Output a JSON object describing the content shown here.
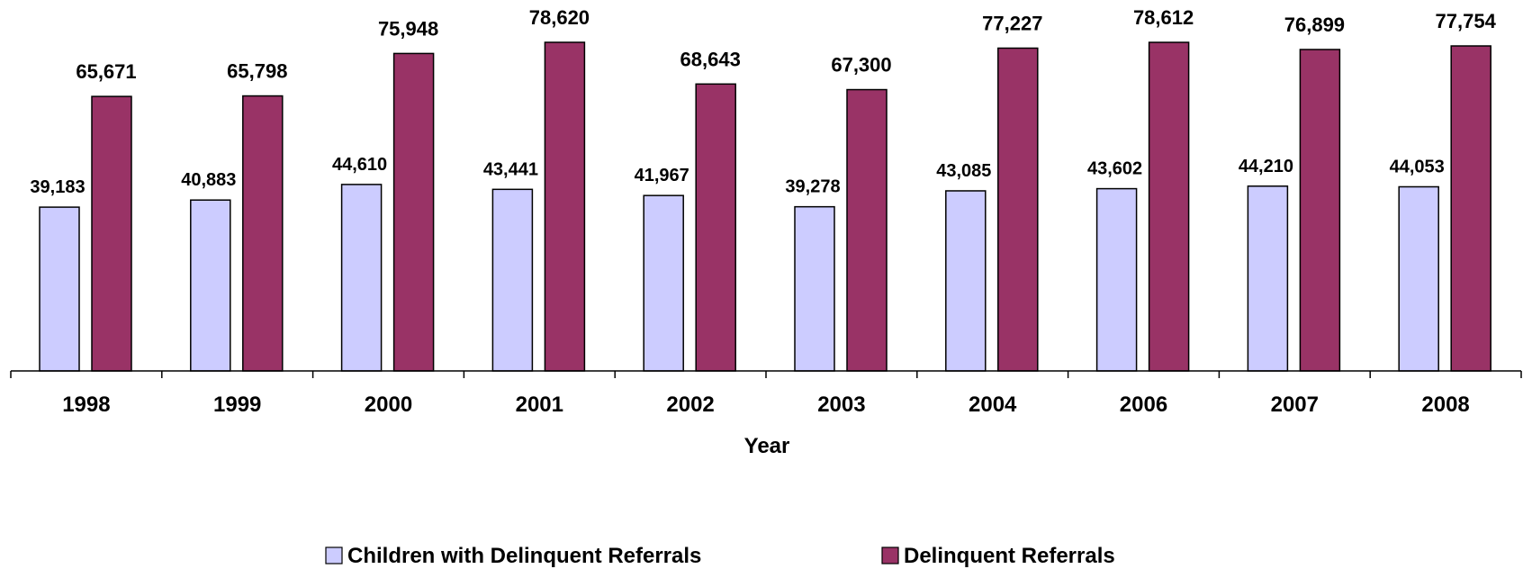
{
  "chart_data": {
    "type": "bar",
    "categories": [
      "1998",
      "1999",
      "2000",
      "2001",
      "2002",
      "2003",
      "2004",
      "2006",
      "2007",
      "2008"
    ],
    "series": [
      {
        "name": "Children with Delinquent Referrals",
        "color": "#ccccff",
        "values": [
          39183,
          40883,
          44610,
          43441,
          41967,
          39278,
          43085,
          43602,
          44210,
          44053
        ],
        "labels": [
          "39,183",
          "40,883",
          "44,610",
          "43,441",
          "41,967",
          "39,278",
          "43,085",
          "43,602",
          "44,210",
          "44,053"
        ]
      },
      {
        "name": "Delinquent Referrals",
        "color": "#993366",
        "values": [
          65671,
          65798,
          75948,
          78620,
          68643,
          67300,
          77227,
          78612,
          76899,
          77754
        ],
        "labels": [
          "65,671",
          "65,798",
          "75,948",
          "78,620",
          "68,643",
          "67,300",
          "77,227",
          "78,612",
          "76,899",
          "77,754"
        ]
      }
    ],
    "xlabel": "Year",
    "ylabel": "",
    "ylim": [
      0,
      90000
    ],
    "grid": false,
    "legend": "bottom"
  }
}
